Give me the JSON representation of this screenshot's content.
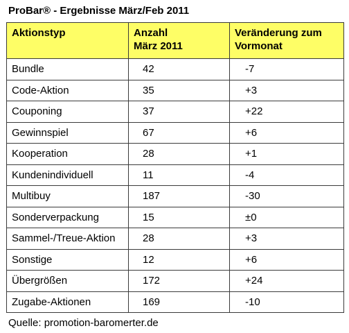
{
  "title": "ProBar® - Ergebnisse März/Feb 2011",
  "table": {
    "headers": {
      "col1": "Aktionstyp",
      "col2_line1": "Anzahl",
      "col2_line2": "März 2011",
      "col3_line1": "Veränderung zum",
      "col3_line2": "Vormonat"
    },
    "rows": [
      {
        "typ": "Bundle",
        "anzahl": "42",
        "veraenderung": "-7"
      },
      {
        "typ": "Code-Aktion",
        "anzahl": "35",
        "veraenderung": "+3"
      },
      {
        "typ": "Couponing",
        "anzahl": "37",
        "veraenderung": "+22"
      },
      {
        "typ": "Gewinnspiel",
        "anzahl": "67",
        "veraenderung": "+6"
      },
      {
        "typ": "Kooperation",
        "anzahl": "28",
        "veraenderung": "+1"
      },
      {
        "typ": "Kundenindividuell",
        "anzahl": "11",
        "veraenderung": "-4"
      },
      {
        "typ": "Multibuy",
        "anzahl": "187",
        "veraenderung": "-30"
      },
      {
        "typ": "Sonderverpackung",
        "anzahl": "15",
        "veraenderung": "±0"
      },
      {
        "typ": "Sammel-/Treue-Aktion",
        "anzahl": "28",
        "veraenderung": "+3"
      },
      {
        "typ": "Sonstige",
        "anzahl": "12",
        "veraenderung": "+6"
      },
      {
        "typ": "Übergrößen",
        "anzahl": "172",
        "veraenderung": "+24"
      },
      {
        "typ": "Zugabe-Aktionen",
        "anzahl": "169",
        "veraenderung": "-10"
      }
    ]
  },
  "source": "Quelle: promotion-baromerter.de",
  "colors": {
    "header_background": "#fefe66",
    "border": "#3a3a3a"
  }
}
